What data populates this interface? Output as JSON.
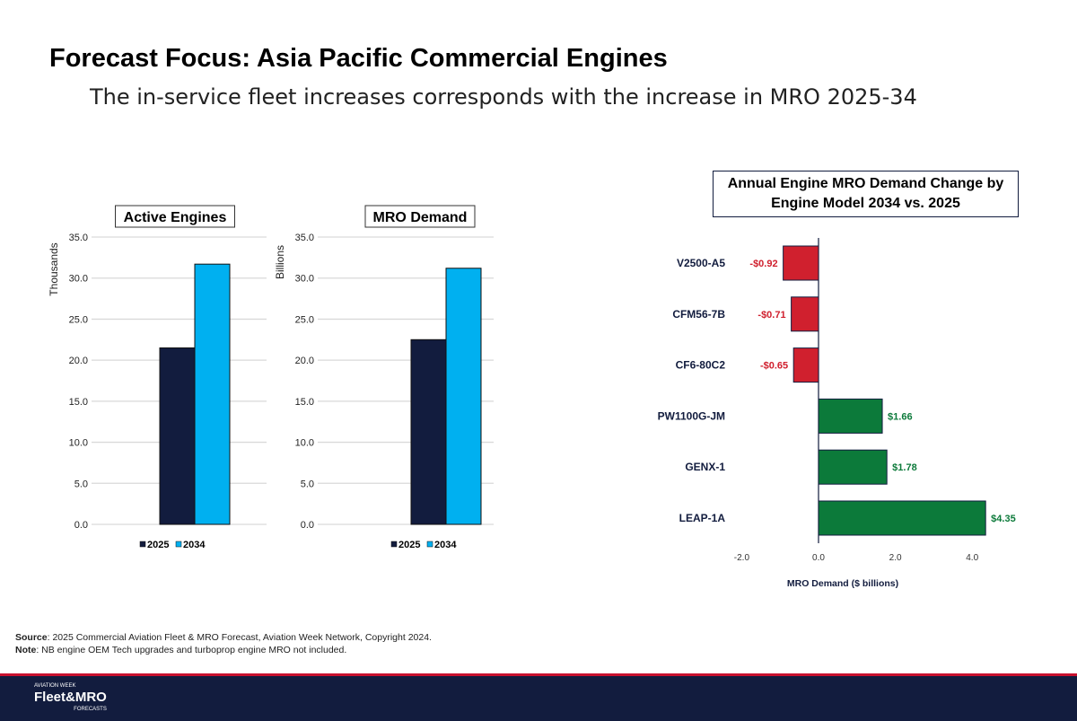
{
  "header": {
    "title": "Forecast Focus: Asia Pacific Commercial Engines",
    "subtitle": "The in-service fleet increases corresponds with the increase in MRO 2025-34"
  },
  "chart_data": [
    {
      "type": "bar",
      "title": "Active Engines",
      "ylabel": "Thousands",
      "categories": [
        ""
      ],
      "ylim": [
        0,
        35
      ],
      "yticks": [
        "0.0",
        "5.0",
        "10.0",
        "15.0",
        "20.0",
        "25.0",
        "30.0",
        "35.0"
      ],
      "series": [
        {
          "name": "2025",
          "values": [
            21.5
          ],
          "color": "#121c3e"
        },
        {
          "name": "2034",
          "values": [
            31.7
          ],
          "color": "#00b0f0"
        }
      ],
      "legend": "bottom"
    },
    {
      "type": "bar",
      "title": "MRO Demand",
      "ylabel": "Billions",
      "categories": [
        ""
      ],
      "ylim": [
        0,
        35
      ],
      "yticks": [
        "0.0",
        "5.0",
        "10.0",
        "15.0",
        "20.0",
        "25.0",
        "30.0",
        "35.0"
      ],
      "series": [
        {
          "name": "2025",
          "values": [
            22.5
          ],
          "color": "#121c3e"
        },
        {
          "name": "2034",
          "values": [
            31.2
          ],
          "color": "#00b0f0"
        }
      ],
      "legend": "bottom"
    },
    {
      "type": "bar",
      "orientation": "horizontal",
      "title": "Annual Engine MRO Demand Change by Engine Model 2034 vs. 2025",
      "xlabel": "MRO Demand ($ billions)",
      "xlim": [
        -2.5,
        4.8
      ],
      "xticks": [
        "-2.0",
        "0.0",
        "2.0",
        "4.0"
      ],
      "categories": [
        "V2500-A5",
        "CFM56-7B",
        "CF6-80C2",
        "PW1100G-JM",
        "GENX-1",
        "LEAP-1A"
      ],
      "values": [
        -0.92,
        -0.71,
        -0.65,
        1.66,
        1.78,
        4.35
      ],
      "labels": [
        "-$0.92",
        "-$0.71",
        "-$0.65",
        "$1.66",
        "$1.78",
        "$4.35"
      ],
      "colors": {
        "negative": "#d0202e",
        "positive": "#0c7a3a"
      }
    }
  ],
  "notes": {
    "source_label": "Source",
    "source": ": 2025 Commercial Aviation Fleet & MRO Forecast, Aviation Week Network, Copyright 2024.",
    "note_label": "Note",
    "note": ": NB engine OEM Tech upgrades and turboprop engine MRO not included."
  },
  "footer": {
    "logo_top": "AVIATION WEEK",
    "logo_main": "Fleet&MRO",
    "logo_bottom": "FORECASTS"
  }
}
